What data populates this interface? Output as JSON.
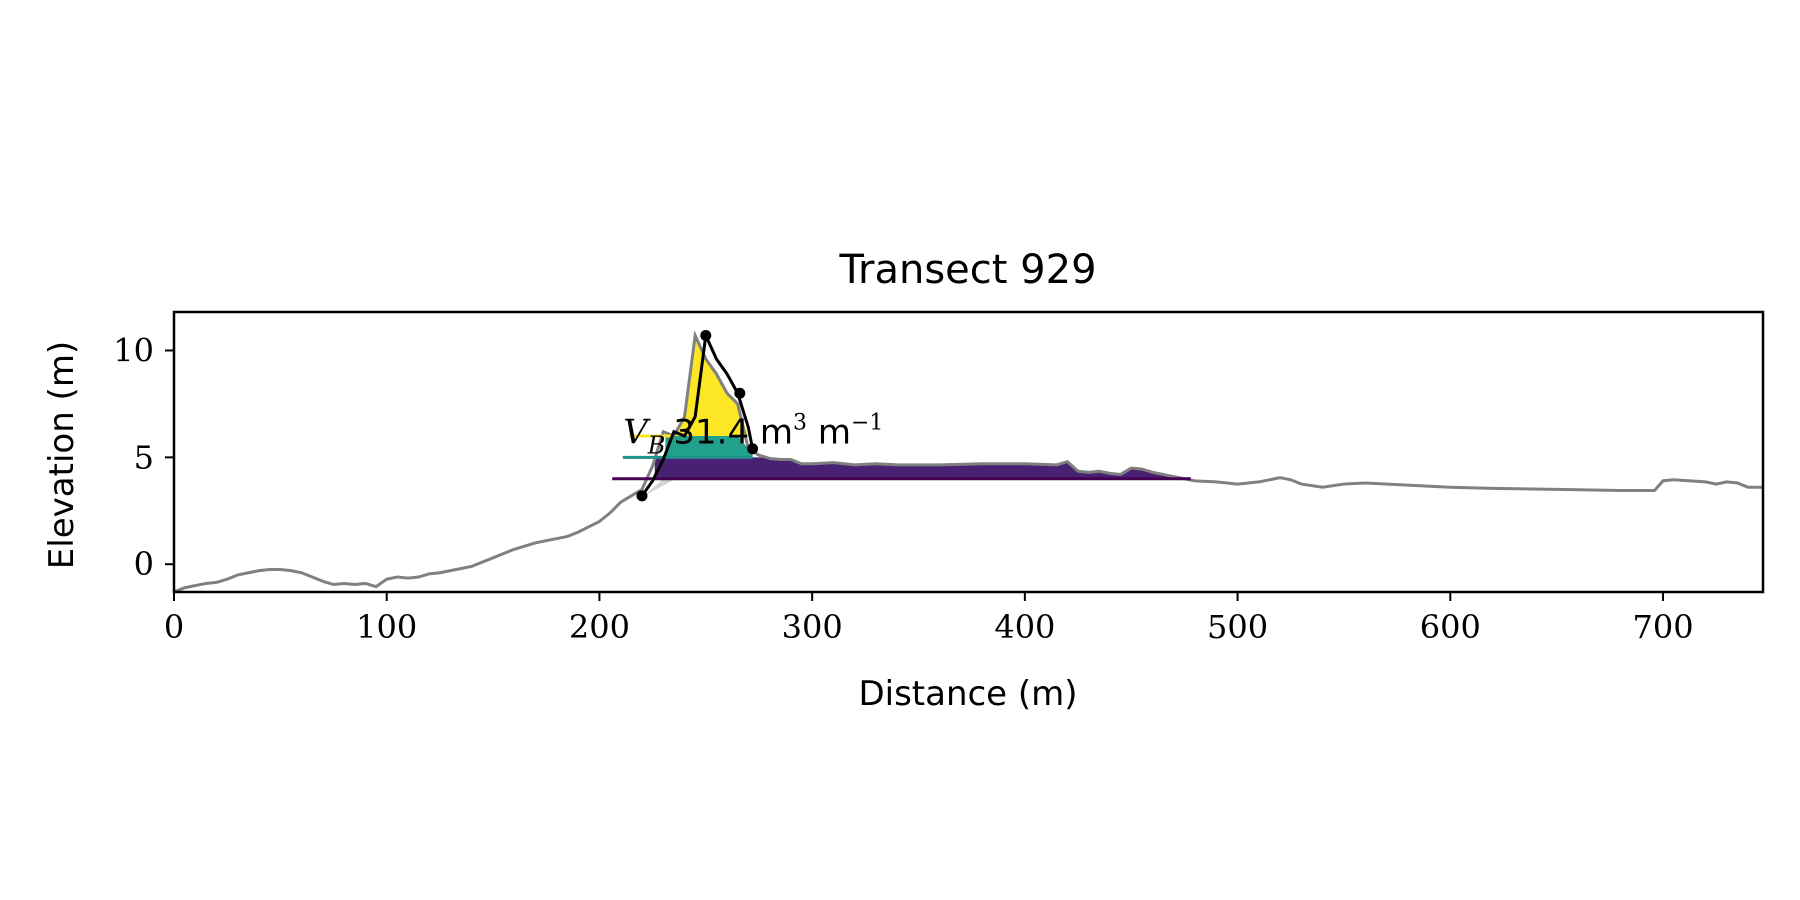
{
  "chart_data": {
    "type": "line",
    "title": "Transect 929",
    "xlabel": "Distance (m)",
    "ylabel": "Elevation (m)",
    "xlim": [
      0,
      747
    ],
    "ylim": [
      -1.3,
      11.8
    ],
    "xticks": [
      0,
      100,
      200,
      300,
      400,
      500,
      600,
      700
    ],
    "yticks": [
      0,
      5,
      10
    ],
    "grid": false,
    "annotation": {
      "symbol": "V",
      "subscript": "B",
      "value_text": "31.4 m",
      "unit_sup1": "3",
      "unit_mid": " m",
      "unit_sup2": "−1",
      "x": 214,
      "y": 6.3
    },
    "profile": {
      "x": [
        0,
        5,
        10,
        15,
        20,
        25,
        30,
        35,
        40,
        45,
        50,
        55,
        60,
        65,
        70,
        75,
        80,
        85,
        90,
        95,
        100,
        105,
        110,
        115,
        120,
        125,
        130,
        135,
        140,
        145,
        150,
        155,
        160,
        165,
        170,
        175,
        180,
        185,
        190,
        195,
        200,
        205,
        210,
        215,
        220,
        225,
        230,
        235,
        240,
        245,
        250,
        255,
        260,
        265,
        270,
        275,
        280,
        285,
        290,
        295,
        300,
        310,
        320,
        330,
        340,
        350,
        360,
        380,
        400,
        415,
        420,
        425,
        430,
        435,
        440,
        445,
        450,
        455,
        460,
        465,
        470,
        475,
        480,
        490,
        500,
        510,
        520,
        525,
        530,
        540,
        550,
        560,
        580,
        600,
        620,
        650,
        680,
        696,
        700,
        705,
        720,
        725,
        730,
        735,
        740,
        747
      ],
      "y": [
        -1.3,
        -1.1,
        -1.0,
        -0.9,
        -0.85,
        -0.7,
        -0.5,
        -0.4,
        -0.3,
        -0.25,
        -0.25,
        -0.3,
        -0.4,
        -0.6,
        -0.8,
        -0.95,
        -0.9,
        -0.95,
        -0.9,
        -1.05,
        -0.7,
        -0.6,
        -0.65,
        -0.6,
        -0.45,
        -0.4,
        -0.3,
        -0.2,
        -0.1,
        0.1,
        0.3,
        0.5,
        0.7,
        0.85,
        1.0,
        1.1,
        1.2,
        1.3,
        1.5,
        1.75,
        2.0,
        2.4,
        2.9,
        3.2,
        3.5,
        4.6,
        6.2,
        6.0,
        6.9,
        10.7,
        9.6,
        8.9,
        8.0,
        7.5,
        5.4,
        5.1,
        4.95,
        4.9,
        4.9,
        4.7,
        4.7,
        4.75,
        4.65,
        4.7,
        4.65,
        4.65,
        4.65,
        4.7,
        4.7,
        4.65,
        4.8,
        4.35,
        4.3,
        4.35,
        4.25,
        4.2,
        4.5,
        4.45,
        4.3,
        4.2,
        4.1,
        4.0,
        3.9,
        3.85,
        3.75,
        3.85,
        4.05,
        3.95,
        3.75,
        3.6,
        3.75,
        3.8,
        3.7,
        3.6,
        3.55,
        3.5,
        3.45,
        3.45,
        3.9,
        3.95,
        3.85,
        3.75,
        3.85,
        3.8,
        3.6,
        3.6
      ]
    },
    "dune_outline": {
      "x": [
        220,
        225,
        230,
        235,
        240,
        245,
        250,
        255,
        260,
        265,
        270,
        272
      ],
      "y": [
        3.2,
        3.9,
        4.9,
        6.2,
        6.0,
        6.9,
        10.7,
        9.6,
        8.9,
        8.0,
        6.4,
        5.4
      ]
    },
    "markers": [
      {
        "x": 220,
        "y": 3.2
      },
      {
        "x": 250,
        "y": 10.7
      },
      {
        "x": 266,
        "y": 8.0
      },
      {
        "x": 272,
        "y": 5.4
      }
    ],
    "layers": [
      {
        "level": 6.0,
        "base": null,
        "color": "#fde725",
        "line_from": 214,
        "line_to": 235
      },
      {
        "level": 5.0,
        "base": 6.0,
        "color": "#21918c",
        "line_from": 211,
        "line_to": 272
      },
      {
        "level": 4.0,
        "base": 5.0,
        "color": "#440154",
        "line_from": 206,
        "line_to": 478
      }
    ],
    "colors": {
      "profile": "#808080",
      "outline": "#000000",
      "yellow_fill": "#fde725",
      "teal_fill": "#21a08b",
      "purple_fill": "#482173",
      "shadow_fill": "#d3d3d3"
    }
  }
}
